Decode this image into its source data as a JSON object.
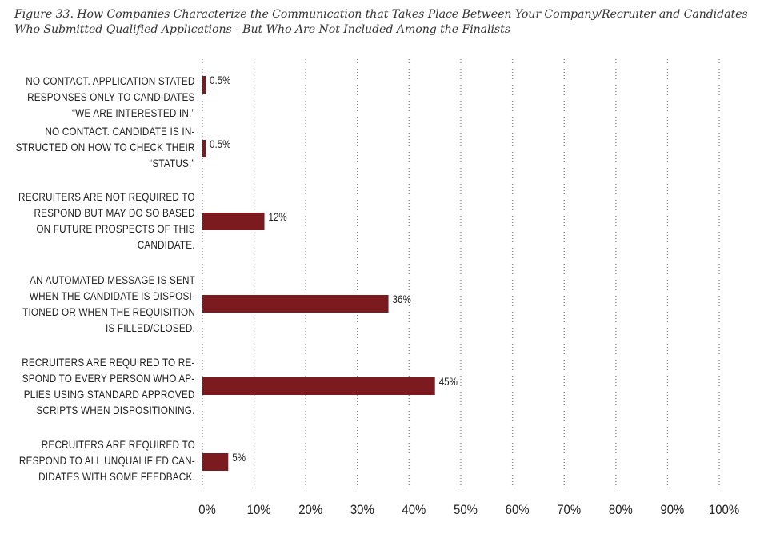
{
  "figure": {
    "title_line1": "Figure 33. How Companies Characterize the Communication that Takes Place Between Your Company/Recruiter and Candidates",
    "title_line2": "Who Submitted Qualified Applications - But Who Are Not Included Among the Finalists"
  },
  "colors": {
    "bar": "#7b1a1f",
    "grid": "#888888",
    "text": "#222222"
  },
  "chart_data": {
    "type": "bar",
    "orientation": "horizontal",
    "title": "Figure 33. How Companies Characterize the Communication that Takes Place Between Your Company/Recruiter and Candidates Who Submitted Qualified Applications - But Who Are Not Included Among the Finalists",
    "categories": [
      [
        "NO CONTACT. APPLICATION STATED",
        "RESPONSES ONLY TO CANDIDATES",
        "“WE ARE INTERESTED IN.”"
      ],
      [
        "NO CONTACT. CANDIDATE IS IN-",
        "STRUCTED ON HOW TO CHECK THEIR",
        "“STATUS.”"
      ],
      [
        "RECRUITERS ARE NOT REQUIRED TO",
        "RESPOND BUT MAY DO SO BASED",
        "ON FUTURE PROSPECTS OF THIS",
        "CANDIDATE."
      ],
      [
        "AN AUTOMATED MESSAGE IS SENT",
        "WHEN THE CANDIDATE IS DISPOSI-",
        "TIONED OR WHEN THE REQUISITION",
        "IS FILLED/CLOSED."
      ],
      [
        "RECRUITERS ARE REQUIRED TO RE-",
        "SPOND TO EVERY PERSON WHO AP-",
        "PLIES USING STANDARD APPROVED",
        "SCRIPTS WHEN DISPOSITIONING."
      ],
      [
        "RECRUITERS ARE REQUIRED TO",
        "RESPOND TO ALL UNQUALIFIED CAN-",
        "DIDATES WITH SOME FEEDBACK."
      ]
    ],
    "values": [
      0.5,
      0.5,
      12,
      36,
      45,
      5
    ],
    "value_labels": [
      "0.5%",
      "0.5%",
      "12%",
      "36%",
      "45%",
      "5%"
    ],
    "xlim": [
      0,
      100
    ],
    "x_ticks": [
      0,
      10,
      20,
      30,
      40,
      50,
      60,
      70,
      80,
      90,
      100
    ],
    "x_tick_labels": [
      "0%",
      "10%",
      "20%",
      "30%",
      "40%",
      "50%",
      "60%",
      "70%",
      "80%",
      "90%",
      "100%"
    ],
    "xlabel": "",
    "ylabel": "",
    "grid": true,
    "grid_style": "dotted vertical",
    "legend": "none"
  }
}
